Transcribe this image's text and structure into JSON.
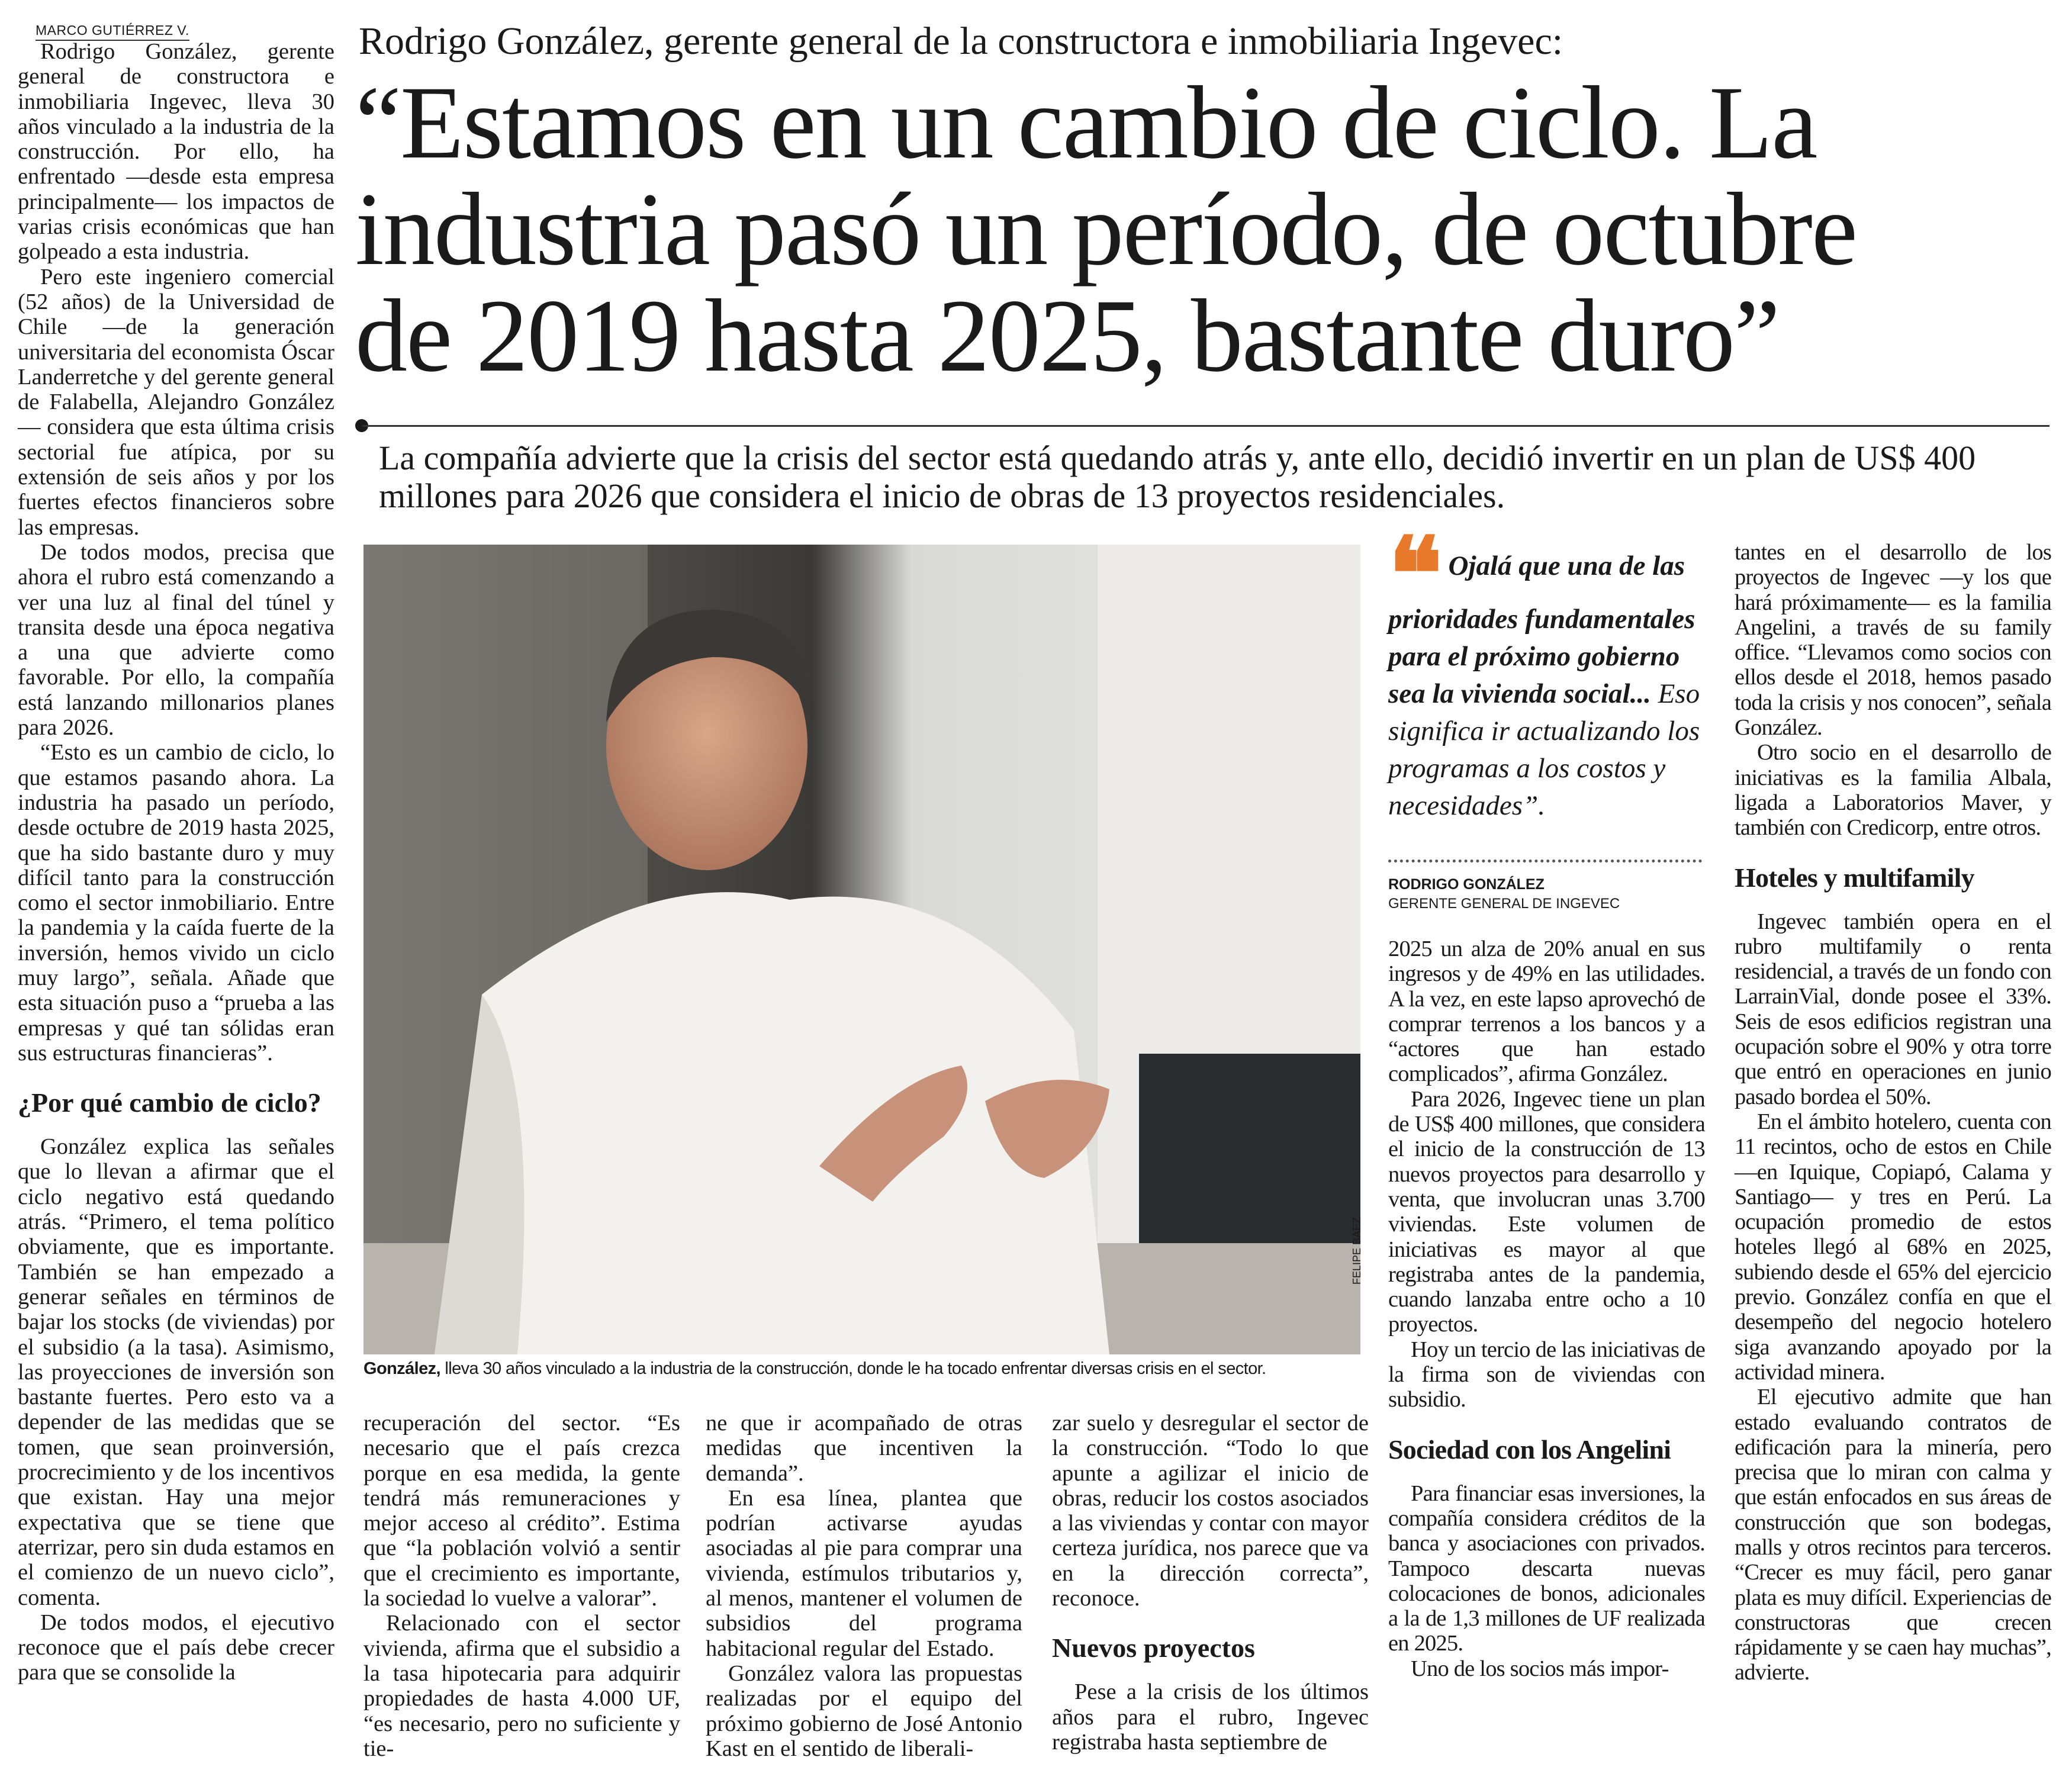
{
  "byline": "MARCO GUTIÉRREZ V.",
  "kicker": "Rodrigo González, gerente general de la constructora e inmobiliaria Ingevec:",
  "headline": [
    "“Estamos en un cambio de ciclo. La",
    "industria pasó un período, de octubre",
    "de 2019 hasta 2025, bastante duro”"
  ],
  "subtitle": "La compañía advierte que la crisis del sector está quedando atrás y, ante ello, decidió invertir en un plan de US$ 400 millones para 2026 que considera el inicio de obras de 13 proyectos residenciales.",
  "photo": {
    "credit": "FELIPE BAEZ",
    "caption_bold": "González,",
    "caption": " lleva 30 años vinculado a la industria de la construcción, donde le ha tocado enfrentar diversas crisis en el sector."
  },
  "quote": {
    "bold": "Ojalá que una de las prioridades fundamentales para el próximo gobierno sea la vivienda social...",
    "rest": " Eso significa ir actualizando los programas a los costos y necesidades”.",
    "name": "RODRIGO GONZÁLEZ",
    "role": "GERENTE GENERAL DE INGEVEC",
    "accent": "#e8782a"
  },
  "col1": {
    "p1": "Rodrigo González, gerente general de constructora e inmobiliaria Ingevec, lleva 30 años vinculado a la industria de la construcción. Por ello, ha enfrentado —desde esta empresa principalmente— los impactos de varias crisis económicas que han golpeado a esta industria.",
    "p2": "Pero este ingeniero comercial (52 años) de la Universidad de Chile —de la generación universitaria del economista Óscar Landerretche y del gerente general de Falabella, Alejandro González— considera que esta última crisis sectorial fue atípica, por su extensión de seis años y por los fuertes efectos financieros sobre las empresas.",
    "p3": "De todos modos, precisa que ahora el rubro está comenzando a ver una luz al final del túnel y transita desde una época negativa a una que advierte como favorable. Por ello, la compañía está lanzando millonarios planes para 2026.",
    "p4": "“Esto es un cambio de ciclo, lo que estamos pasando ahora. La industria ha pasado un período, desde octubre de 2019 hasta 2025, que ha sido bastante duro y muy difícil tanto para la construcción como el sector inmobiliario. Entre la pandemia y la caída fuerte de la inversión, hemos vivido un ciclo muy largo”, señala. Añade que esta situación puso a “prueba a las empresas y qué tan sólidas eran sus estructuras financieras”.",
    "h1": "¿Por qué cambio de ciclo?",
    "p5": "González explica las señales que lo llevan a afirmar que el ciclo negativo está quedando atrás. “Primero, el tema político obviamente, que es importante. También se han empezado a generar señales en términos de bajar los stocks (de viviendas) por el subsidio (a la tasa). Asimismo, las proyecciones de inversión son bastante fuertes. Pero esto va a depender de las medidas que se tomen, que sean proinversión, procrecimiento y de los incentivos que existan. Hay una mejor expectativa que se tiene que aterrizar, pero sin duda estamos en el comienzo de un nuevo ciclo”, comenta.",
    "p6": "De todos modos, el ejecutivo reconoce que el país debe crecer para que se consolide la"
  },
  "col2": {
    "p1": "recuperación del sector. “Es necesario que el país crezca porque en esa medida, la gente tendrá más remuneraciones y mejor acceso al crédito”. Estima que “la población volvió a sentir que el crecimiento es importante, la sociedad lo vuelve a valorar”.",
    "p2": "Relacionado con el sector vivienda, afirma que el subsidio a la tasa hipotecaria para adquirir propiedades de hasta 4.000 UF, “es necesario, pero no suficiente y tie-"
  },
  "col3": {
    "p1": "ne que ir acompañado de otras medidas que incentiven la demanda”.",
    "p2": "En esa línea, plantea que podrían activarse ayudas asociadas al pie para comprar una vivienda, estímulos tributarios y, al menos, mantener el volumen de subsidios del programa habitacional regular del Estado.",
    "p3": "González valora las propuestas realizadas por el equipo del próximo gobierno de José Antonio Kast en el sentido de liberali-"
  },
  "col4": {
    "p1": "zar suelo y desregular el sector de la construcción. “Todo lo que apunte a agilizar el inicio de obras, reducir los costos asociados a las viviendas y contar con mayor certeza jurídica, nos parece que va en la dirección correcta”, reconoce.",
    "h1": "Nuevos proyectos",
    "p2": "Pese a la crisis de los últimos años para el rubro, Ingevec registraba hasta septiembre de"
  },
  "col5": {
    "p1": "2025 un alza de 20% anual en sus ingresos y de 49% en las utilidades. A la vez, en este lapso aprovechó de comprar terrenos a los bancos y a “actores que han estado complicados”, afirma González.",
    "p2": "Para 2026, Ingevec tiene un plan de US$ 400 millones, que considera el inicio de la construcción de 13 nuevos proyectos para desarrollo y venta, que involucran unas 3.700 viviendas. Este volumen de iniciativas es mayor al que registraba antes de la pandemia, cuando lanzaba entre ocho a 10 proyectos.",
    "p3": "Hoy un tercio de las iniciativas de la firma son de viviendas con subsidio.",
    "h1": "Sociedad con los Angelini",
    "p4": "Para financiar esas inversiones, la compañía considera créditos de la banca y asociaciones con privados. Tampoco descarta nuevas colocaciones de bonos, adicionales a la de 1,3 millones de UF realizada en 2025.",
    "p5": "Uno de los socios más impor-"
  },
  "col6": {
    "p1": "tantes en el desarrollo de los proyectos de Ingevec —y los que hará próximamente— es la familia Angelini, a través de su family office. “Llevamos como socios con ellos desde el 2018, hemos pasado toda la crisis y nos conocen”, señala González.",
    "p2": "Otro socio en el desarrollo de iniciativas es la familia Albala, ligada a Laboratorios Maver, y también con Credicorp, entre otros.",
    "h1": "Hoteles y multifamily",
    "p3": "Ingevec también opera en el rubro multifamily o renta residencial, a través de un fondo con LarrainVial, donde posee el 33%. Seis de esos edificios registran una ocupación sobre el 90% y otra torre que entró en operaciones en junio pasado bordea el 50%.",
    "p4": "En el ámbito hotelero, cuenta con 11 recintos, ocho de estos en Chile —en Iquique, Copiapó, Calama y Santiago— y tres en Perú. La ocupación promedio de estos hoteles llegó al 68% en 2025, subiendo desde el 65% del ejercicio previo. González confía en que el desempeño del negocio hotelero siga avanzando apoyado por la actividad minera.",
    "p5": "El ejecutivo admite que han estado evaluando contratos de edificación para la minería, pero precisa que lo miran con calma y que están enfocados en sus áreas de construcción que son bodegas, malls y otros recintos para terceros. “Crecer es muy fácil, pero ganar plata es muy difícil. Experiencias de constructoras que crecen rápidamente y se caen hay muchas”, advierte."
  }
}
